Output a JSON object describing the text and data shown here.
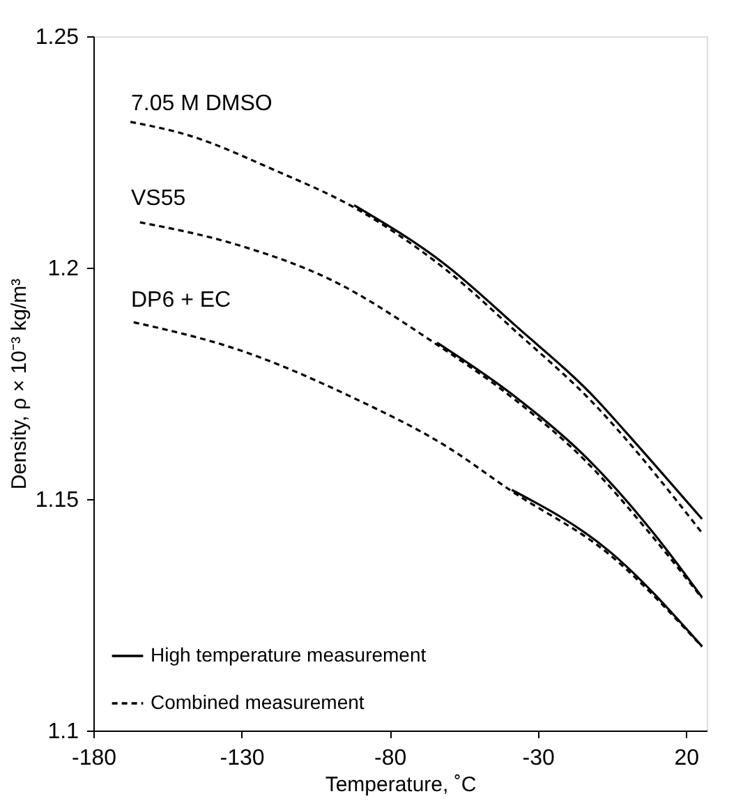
{
  "chart_data": {
    "type": "line",
    "xlabel": "Temperature, ˚C",
    "ylabel": "Density, ρ × 10⁻³ kg/m³",
    "xlim": [
      -180,
      27
    ],
    "xticks": [
      -180,
      -130,
      -80,
      -30,
      20
    ],
    "ylim": [
      1.1,
      1.25
    ],
    "yticks": [
      1.1,
      1.15,
      1.2,
      1.25
    ],
    "grid": false,
    "legend": "bottom left",
    "marker": "none",
    "series": [
      {
        "name": "High temperature measurement",
        "color": "#000000",
        "line_style": "solid",
        "x": [
          -92,
          -60.9,
          -37.4,
          -9.9,
          -1.3,
          25.4
        ],
        "values": [
          1.2135,
          1.2005,
          1.1874,
          1.1713,
          1.1652,
          1.1457
        ]
      },
      {
        "color": "#000000",
        "line_style": "solid",
        "x": [
          -64,
          -37.4,
          -14,
          9.6,
          25.4
        ],
        "values": [
          1.1838,
          1.172,
          1.1592,
          1.1422,
          1.1288
        ]
      },
      {
        "color": "#000000",
        "line_style": "solid",
        "x": [
          -38.8,
          -6,
          25.4
        ],
        "values": [
          1.152,
          1.1388,
          1.1182
        ]
      },
      {
        "name": "Combined measurement",
        "color": "#000000",
        "line_style": "dashed",
        "x": [
          -167.5,
          -148.4,
          -118.6,
          -92,
          -60.9,
          -37.4,
          -9.9,
          -1.3,
          25.4
        ],
        "values": [
          1.2315,
          1.2287,
          1.221,
          1.213,
          1.1995,
          1.1862,
          1.1698,
          1.1637,
          1.1427
        ]
      },
      {
        "color": "#000000",
        "line_style": "dashed",
        "x": [
          -164.3,
          -131.2,
          -99.9,
          -63.9,
          -37.4,
          -14,
          9.6,
          25.4
        ],
        "values": [
          1.2098,
          1.2049,
          1.1974,
          1.1833,
          1.1713,
          1.1583,
          1.1412,
          1.1286
        ]
      },
      {
        "color": "#000000",
        "line_style": "dashed",
        "x": [
          -166.4,
          -131.2,
          -92,
          -60.9,
          -38.8,
          -6,
          25.4
        ],
        "values": [
          1.1882,
          1.1823,
          1.1718,
          1.1614,
          1.1517,
          1.1381,
          1.1181
        ]
      }
    ],
    "annotations": [
      "7.05 M DMSO",
      "VS55",
      "DP6 + EC"
    ]
  }
}
